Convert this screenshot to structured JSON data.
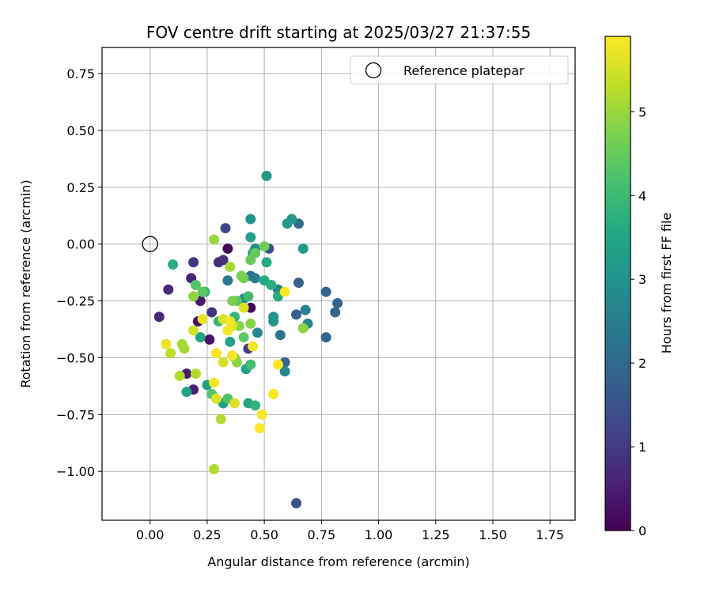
{
  "chart_data": {
    "type": "scatter",
    "title": "FOV centre drift starting at 2025/03/27 21:37:55",
    "xlabel": "Angular distance from reference (arcmin)",
    "ylabel": "Rotation from reference (arcmin)",
    "colorbar_label": "Hours from first FF file",
    "xlim": [
      -0.21,
      1.86
    ],
    "ylim": [
      -1.215,
      0.865
    ],
    "xticks": [
      0.0,
      0.25,
      0.5,
      0.75,
      1.0,
      1.25,
      1.5,
      1.75
    ],
    "xtick_labels": [
      "0.00",
      "0.25",
      "0.50",
      "0.75",
      "1.00",
      "1.25",
      "1.50",
      "1.75"
    ],
    "yticks": [
      0.75,
      0.5,
      0.25,
      0.0,
      -0.25,
      -0.5,
      -0.75,
      -1.0
    ],
    "ytick_labels": [
      "0.75",
      "0.50",
      "0.25",
      "0.00",
      "−0.25",
      "−0.50",
      "−0.75",
      "−1.00"
    ],
    "colorbar_range": [
      0,
      5.9
    ],
    "colorbar_ticks": [
      0,
      1,
      2,
      3,
      4,
      5
    ],
    "colorbar_tick_labels": [
      "0",
      "1",
      "2",
      "3",
      "4",
      "5"
    ],
    "colormap": "viridis",
    "grid": true,
    "legend": {
      "placement": "top-right",
      "entries": [
        {
          "label": "Reference platepar",
          "marker": "open-circle"
        }
      ]
    },
    "reference_point": {
      "x": 0.0,
      "y": 0.0
    },
    "points": [
      {
        "x": 0.34,
        "y": -0.02,
        "h": 0.1
      },
      {
        "x": 0.44,
        "y": -0.28,
        "h": 0.1
      },
      {
        "x": 0.26,
        "y": -0.42,
        "h": 0.3
      },
      {
        "x": 0.21,
        "y": -0.34,
        "h": 0.3
      },
      {
        "x": 0.22,
        "y": -0.25,
        "h": 0.4
      },
      {
        "x": 0.16,
        "y": -0.57,
        "h": 0.4
      },
      {
        "x": 0.19,
        "y": -0.64,
        "h": 0.5
      },
      {
        "x": 0.18,
        "y": -0.15,
        "h": 0.6
      },
      {
        "x": 0.08,
        "y": -0.2,
        "h": 0.7
      },
      {
        "x": 0.04,
        "y": -0.32,
        "h": 0.7
      },
      {
        "x": 0.3,
        "y": -0.08,
        "h": 0.8
      },
      {
        "x": 0.32,
        "y": -0.07,
        "h": 0.8
      },
      {
        "x": 0.19,
        "y": -0.08,
        "h": 0.9
      },
      {
        "x": 0.27,
        "y": -0.3,
        "h": 0.9
      },
      {
        "x": 0.43,
        "y": -0.46,
        "h": 1.0
      },
      {
        "x": 0.33,
        "y": 0.07,
        "h": 1.3
      },
      {
        "x": 0.64,
        "y": -1.14,
        "h": 1.5
      },
      {
        "x": 0.52,
        "y": -0.02,
        "h": 1.5
      },
      {
        "x": 0.64,
        "y": -0.31,
        "h": 1.8
      },
      {
        "x": 0.65,
        "y": -0.17,
        "h": 1.8
      },
      {
        "x": 0.77,
        "y": -0.21,
        "h": 1.9
      },
      {
        "x": 0.82,
        "y": -0.26,
        "h": 1.9
      },
      {
        "x": 0.81,
        "y": -0.3,
        "h": 1.9
      },
      {
        "x": 0.77,
        "y": -0.41,
        "h": 1.9
      },
      {
        "x": 0.59,
        "y": -0.52,
        "h": 1.9
      },
      {
        "x": 0.65,
        "y": 0.09,
        "h": 2.1
      },
      {
        "x": 0.44,
        "y": -0.14,
        "h": 2.2
      },
      {
        "x": 0.57,
        "y": -0.4,
        "h": 2.3
      },
      {
        "x": 0.34,
        "y": -0.16,
        "h": 2.4
      },
      {
        "x": 0.46,
        "y": -0.15,
        "h": 2.5
      },
      {
        "x": 0.56,
        "y": -0.2,
        "h": 2.6
      },
      {
        "x": 0.68,
        "y": -0.29,
        "h": 2.6
      },
      {
        "x": 0.69,
        "y": -0.35,
        "h": 2.7
      },
      {
        "x": 0.59,
        "y": -0.56,
        "h": 2.7
      },
      {
        "x": 0.47,
        "y": -0.39,
        "h": 2.8
      },
      {
        "x": 0.41,
        "y": -0.24,
        "h": 2.9
      },
      {
        "x": 0.46,
        "y": -0.02,
        "h": 2.9
      },
      {
        "x": 0.44,
        "y": 0.11,
        "h": 3.0
      },
      {
        "x": 0.54,
        "y": -0.32,
        "h": 3.0
      },
      {
        "x": 0.54,
        "y": -0.34,
        "h": 3.1
      },
      {
        "x": 0.51,
        "y": 0.3,
        "h": 3.2
      },
      {
        "x": 0.6,
        "y": 0.09,
        "h": 3.2
      },
      {
        "x": 0.62,
        "y": 0.11,
        "h": 3.2
      },
      {
        "x": 0.67,
        "y": -0.02,
        "h": 3.2
      },
      {
        "x": 0.45,
        "y": -0.04,
        "h": 3.2
      },
      {
        "x": 0.44,
        "y": 0.03,
        "h": 3.3
      },
      {
        "x": 0.32,
        "y": -0.7,
        "h": 3.3
      },
      {
        "x": 0.25,
        "y": -0.62,
        "h": 3.3
      },
      {
        "x": 0.16,
        "y": -0.65,
        "h": 3.4
      },
      {
        "x": 0.22,
        "y": -0.41,
        "h": 3.4
      },
      {
        "x": 0.35,
        "y": -0.43,
        "h": 3.4
      },
      {
        "x": 0.42,
        "y": -0.55,
        "h": 3.4
      },
      {
        "x": 0.43,
        "y": -0.7,
        "h": 3.5
      },
      {
        "x": 0.51,
        "y": -0.08,
        "h": 3.6
      },
      {
        "x": 0.56,
        "y": -0.23,
        "h": 3.6
      },
      {
        "x": 0.5,
        "y": -0.16,
        "h": 3.6
      },
      {
        "x": 0.53,
        "y": -0.18,
        "h": 3.7
      },
      {
        "x": 0.1,
        "y": -0.09,
        "h": 3.7
      },
      {
        "x": 0.24,
        "y": -0.21,
        "h": 3.8
      },
      {
        "x": 0.46,
        "y": -0.71,
        "h": 3.8
      },
      {
        "x": 0.3,
        "y": -0.34,
        "h": 3.9
      },
      {
        "x": 0.37,
        "y": -0.32,
        "h": 3.9
      },
      {
        "x": 0.43,
        "y": -0.23,
        "h": 4.0
      },
      {
        "x": 0.44,
        "y": -0.53,
        "h": 4.1
      },
      {
        "x": 0.34,
        "y": -0.68,
        "h": 4.2
      },
      {
        "x": 0.27,
        "y": -0.66,
        "h": 4.3
      },
      {
        "x": 0.2,
        "y": -0.18,
        "h": 4.3
      },
      {
        "x": 0.23,
        "y": -0.21,
        "h": 4.4
      },
      {
        "x": 0.38,
        "y": -0.25,
        "h": 4.4
      },
      {
        "x": 0.41,
        "y": -0.41,
        "h": 4.4
      },
      {
        "x": 0.44,
        "y": -0.07,
        "h": 4.5
      },
      {
        "x": 0.46,
        "y": -0.04,
        "h": 4.5
      },
      {
        "x": 0.5,
        "y": -0.01,
        "h": 4.6
      },
      {
        "x": 0.41,
        "y": -0.15,
        "h": 4.6
      },
      {
        "x": 0.4,
        "y": -0.14,
        "h": 4.7
      },
      {
        "x": 0.36,
        "y": -0.25,
        "h": 4.7
      },
      {
        "x": 0.39,
        "y": -0.36,
        "h": 4.8
      },
      {
        "x": 0.44,
        "y": -0.35,
        "h": 4.8
      },
      {
        "x": 0.19,
        "y": -0.23,
        "h": 4.9
      },
      {
        "x": 0.37,
        "y": -0.5,
        "h": 4.9
      },
      {
        "x": 0.38,
        "y": -0.52,
        "h": 4.9
      },
      {
        "x": 0.67,
        "y": -0.37,
        "h": 4.9
      },
      {
        "x": 0.28,
        "y": 0.02,
        "h": 5.0
      },
      {
        "x": 0.35,
        "y": -0.1,
        "h": 5.1
      },
      {
        "x": 0.15,
        "y": -0.46,
        "h": 5.1
      },
      {
        "x": 0.14,
        "y": -0.44,
        "h": 5.1
      },
      {
        "x": 0.13,
        "y": -0.58,
        "h": 5.2
      },
      {
        "x": 0.2,
        "y": -0.57,
        "h": 5.2
      },
      {
        "x": 0.31,
        "y": -0.77,
        "h": 5.2
      },
      {
        "x": 0.28,
        "y": -0.99,
        "h": 5.2
      },
      {
        "x": 0.09,
        "y": -0.48,
        "h": 5.3
      },
      {
        "x": 0.19,
        "y": -0.38,
        "h": 5.5
      },
      {
        "x": 0.32,
        "y": -0.52,
        "h": 5.5
      },
      {
        "x": 0.32,
        "y": -0.33,
        "h": 5.6
      },
      {
        "x": 0.41,
        "y": -0.28,
        "h": 5.6
      },
      {
        "x": 0.36,
        "y": -0.36,
        "h": 5.6
      },
      {
        "x": 0.37,
        "y": -0.7,
        "h": 5.6
      },
      {
        "x": 0.29,
        "y": -0.68,
        "h": 5.6
      },
      {
        "x": 0.23,
        "y": -0.33,
        "h": 5.7
      },
      {
        "x": 0.07,
        "y": -0.44,
        "h": 5.7
      },
      {
        "x": 0.29,
        "y": -0.48,
        "h": 5.8
      },
      {
        "x": 0.35,
        "y": -0.34,
        "h": 5.8
      },
      {
        "x": 0.34,
        "y": -0.38,
        "h": 5.8
      },
      {
        "x": 0.45,
        "y": -0.45,
        "h": 5.8
      },
      {
        "x": 0.28,
        "y": -0.61,
        "h": 5.8
      },
      {
        "x": 0.36,
        "y": -0.49,
        "h": 5.8
      },
      {
        "x": 0.59,
        "y": -0.21,
        "h": 5.9
      },
      {
        "x": 0.56,
        "y": -0.53,
        "h": 5.9
      },
      {
        "x": 0.54,
        "y": -0.66,
        "h": 5.9
      },
      {
        "x": 0.49,
        "y": -0.75,
        "h": 5.9
      },
      {
        "x": 0.48,
        "y": -0.81,
        "h": 5.9
      }
    ]
  }
}
